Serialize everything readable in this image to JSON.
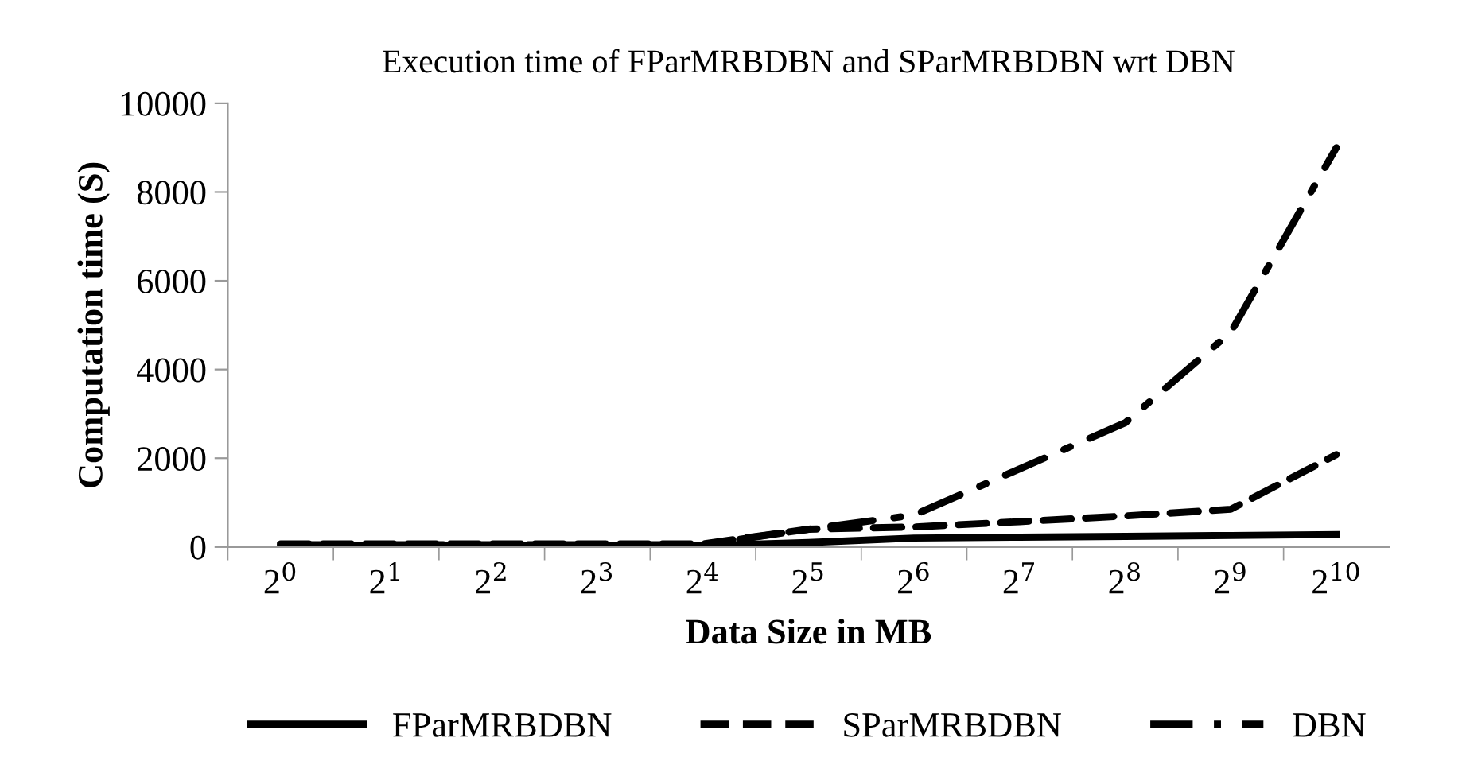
{
  "chart_data": {
    "type": "line",
    "title": "Execution time of FParMRBDBN and SParMRBDBN wrt DBN",
    "xlabel": "Data Size in MB",
    "ylabel": "Computation time (S)",
    "categories": [
      "2$^{0}$",
      "2$^{1}$",
      "2$^{2}$",
      "2$^{3}$",
      "2$^{4}$",
      "2$^{5}$",
      "2$^{6}$",
      "2$^{7}$",
      "2$^{8}$",
      "2$^{9}$",
      "2$^{10}$"
    ],
    "series": [
      {
        "name": "FParMRBDBN",
        "color": "#000000",
        "line_style": "solid",
        "values": [
          30,
          30,
          30,
          30,
          30,
          100,
          200,
          220,
          240,
          260,
          280
        ]
      },
      {
        "name": "SParMRBDBN",
        "color": "#000000",
        "line_style": "dashed",
        "values": [
          70,
          70,
          70,
          70,
          70,
          400,
          450,
          570,
          700,
          850,
          2080
        ]
      },
      {
        "name": "DBN",
        "color": "#000000",
        "line_style": "dashdot",
        "values": [
          50,
          50,
          50,
          50,
          50,
          400,
          720,
          1760,
          2800,
          4840,
          9000
        ]
      }
    ],
    "ylim": [
      0,
      10000
    ],
    "yticks": [
      0,
      2000,
      4000,
      6000,
      8000,
      10000
    ],
    "grid": false,
    "legend": "bottom",
    "marker": "none"
  }
}
